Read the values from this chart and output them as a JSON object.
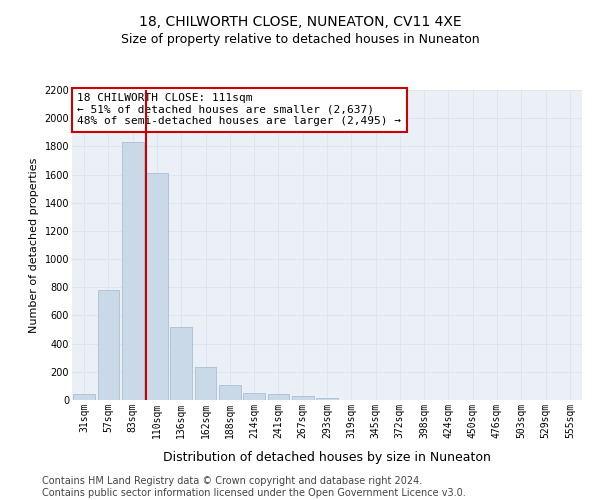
{
  "title": "18, CHILWORTH CLOSE, NUNEATON, CV11 4XE",
  "subtitle": "Size of property relative to detached houses in Nuneaton",
  "xlabel": "Distribution of detached houses by size in Nuneaton",
  "ylabel": "Number of detached properties",
  "categories": [
    "31sqm",
    "57sqm",
    "83sqm",
    "110sqm",
    "136sqm",
    "162sqm",
    "188sqm",
    "214sqm",
    "241sqm",
    "267sqm",
    "293sqm",
    "319sqm",
    "345sqm",
    "372sqm",
    "398sqm",
    "424sqm",
    "450sqm",
    "476sqm",
    "503sqm",
    "529sqm",
    "555sqm"
  ],
  "values": [
    45,
    780,
    1830,
    1610,
    520,
    235,
    105,
    50,
    40,
    25,
    15,
    0,
    0,
    0,
    0,
    0,
    0,
    0,
    0,
    0,
    0
  ],
  "bar_color": "#c9d9e8",
  "bar_edge_color": "#a0b8cc",
  "vline_color": "#cc0000",
  "vline_position": 2.55,
  "annotation_text": "18 CHILWORTH CLOSE: 111sqm\n← 51% of detached houses are smaller (2,637)\n48% of semi-detached houses are larger (2,495) →",
  "annotation_box_color": "#ffffff",
  "annotation_box_edge_color": "#cc0000",
  "grid_color": "#dce6f1",
  "background_color": "#eaf0f6",
  "ylim": [
    0,
    2200
  ],
  "yticks": [
    0,
    200,
    400,
    600,
    800,
    1000,
    1200,
    1400,
    1600,
    1800,
    2000,
    2200
  ],
  "footer": "Contains HM Land Registry data © Crown copyright and database right 2024.\nContains public sector information licensed under the Open Government Licence v3.0.",
  "title_fontsize": 10,
  "subtitle_fontsize": 9,
  "xlabel_fontsize": 9,
  "ylabel_fontsize": 8,
  "tick_fontsize": 7,
  "annotation_fontsize": 8,
  "footer_fontsize": 7
}
